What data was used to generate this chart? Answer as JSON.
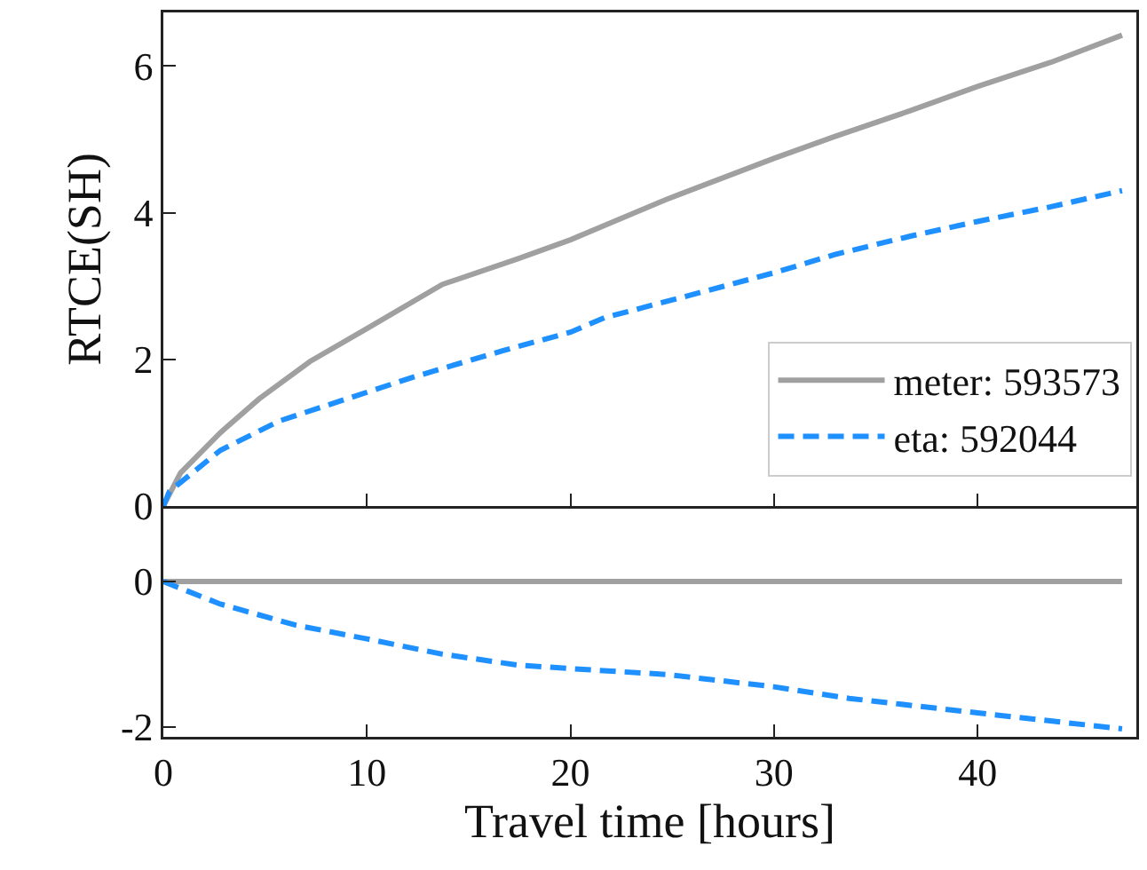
{
  "chart_data": [
    {
      "type": "line",
      "ylabel": "RTCE(SH)",
      "xlim": [
        0,
        47.8
      ],
      "xticks": [
        0,
        10,
        20,
        30,
        40
      ],
      "ylim": [
        0,
        6.73
      ],
      "yticks": [
        0,
        2,
        4,
        6
      ],
      "tick_labels": "y",
      "legend": "bottom right",
      "grid": false,
      "series": [
        {
          "name": "meter: 593573",
          "color": "#a0a0a0",
          "line_style": "solid",
          "x": [
            0,
            0.84,
            2.8,
            4.7,
            7.2,
            10,
            13.7,
            17.4,
            20,
            24.7,
            30,
            33,
            36.7,
            40,
            43.6,
            47.1
          ],
          "values": [
            0,
            0.45,
            1.0,
            1.46,
            1.97,
            2.42,
            3.02,
            3.37,
            3.63,
            4.18,
            4.74,
            5.04,
            5.39,
            5.72,
            6.05,
            6.42
          ]
        },
        {
          "name": "eta: 592044",
          "color": "#1e90ff",
          "line_style": "dashed",
          "x": [
            0,
            0.3,
            2.8,
            5.7,
            9,
            12.3,
            16.7,
            20,
            21.7,
            26.5,
            30,
            33,
            36.7,
            40,
            43.6,
            47.1
          ],
          "values": [
            0,
            0.2,
            0.76,
            1.16,
            1.46,
            1.76,
            2.12,
            2.37,
            2.57,
            2.92,
            3.18,
            3.43,
            3.68,
            3.88,
            4.08,
            4.3
          ]
        }
      ]
    },
    {
      "type": "line",
      "xlabel": "Travel time [hours]",
      "xlim": [
        0,
        47.8
      ],
      "xticks": [
        0,
        10,
        20,
        30,
        40
      ],
      "ylim": [
        -2.14,
        1.09
      ],
      "yticks": [
        -2,
        0
      ],
      "grid": false,
      "series": [
        {
          "color": "#a0a0a0",
          "line_style": "solid",
          "x": [
            0,
            47.1
          ],
          "values": [
            0,
            0
          ]
        },
        {
          "color": "#1e90ff",
          "line_style": "dashed",
          "x": [
            0,
            2.8,
            6.5,
            10,
            13.7,
            17.4,
            20,
            24.7,
            30,
            33.7,
            40,
            47.1
          ],
          "values": [
            0,
            -0.31,
            -0.6,
            -0.79,
            -1.0,
            -1.15,
            -1.2,
            -1.28,
            -1.45,
            -1.61,
            -1.81,
            -2.03
          ]
        }
      ]
    }
  ]
}
